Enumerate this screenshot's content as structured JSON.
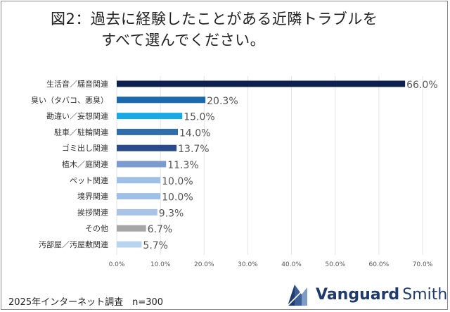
{
  "title": {
    "line1": "図2：過去に経験したことがある近隣トラブルを",
    "line2": "すべて選んでください。"
  },
  "footer_note": "2025年インターネット調査　n=300",
  "brand": {
    "name_bold": "Vanguard",
    "name_regular": "Smith",
    "logo_icon": "vanguard-smith-logo-icon",
    "color": "#1f3b6e"
  },
  "chart_data": {
    "type": "bar",
    "orientation": "horizontal",
    "categories": [
      "生活音／騒音関連",
      "臭い（タバコ、悪臭）",
      "勘違い／妄想関連",
      "駐車／駐輪関連",
      "ゴミ出し関連",
      "植木／庭関連",
      "ペット関連",
      "境界関連",
      "挨拶関連",
      "その他",
      "汚部屋／汚屋敷関連"
    ],
    "values": [
      66.0,
      20.3,
      15.0,
      14.0,
      13.7,
      11.3,
      10.0,
      10.0,
      9.3,
      6.7,
      5.7
    ],
    "value_labels": [
      "66.0%",
      "20.3%",
      "15.0%",
      "14.0%",
      "13.7%",
      "11.3%",
      "10.0%",
      "10.0%",
      "9.3%",
      "6.7%",
      "5.7%"
    ],
    "colors": [
      "#0d1f4f",
      "#1a6aad",
      "#19a9e3",
      "#2f6ea8",
      "#2b4a8c",
      "#7b9bd0",
      "#9fc0e6",
      "#9fc0e6",
      "#a9c2e8",
      "#a6a6a6",
      "#b9d4ee"
    ],
    "xlim": [
      0,
      70
    ],
    "ticks": [
      "0.0%",
      "10.0%",
      "20.0%",
      "30.0%",
      "40.0%",
      "50.0%",
      "60.0%",
      "70.0%"
    ],
    "tick_values": [
      0,
      10,
      20,
      30,
      40,
      50,
      60,
      70
    ],
    "grid": true,
    "gridline_color": "#e3e3e3"
  }
}
